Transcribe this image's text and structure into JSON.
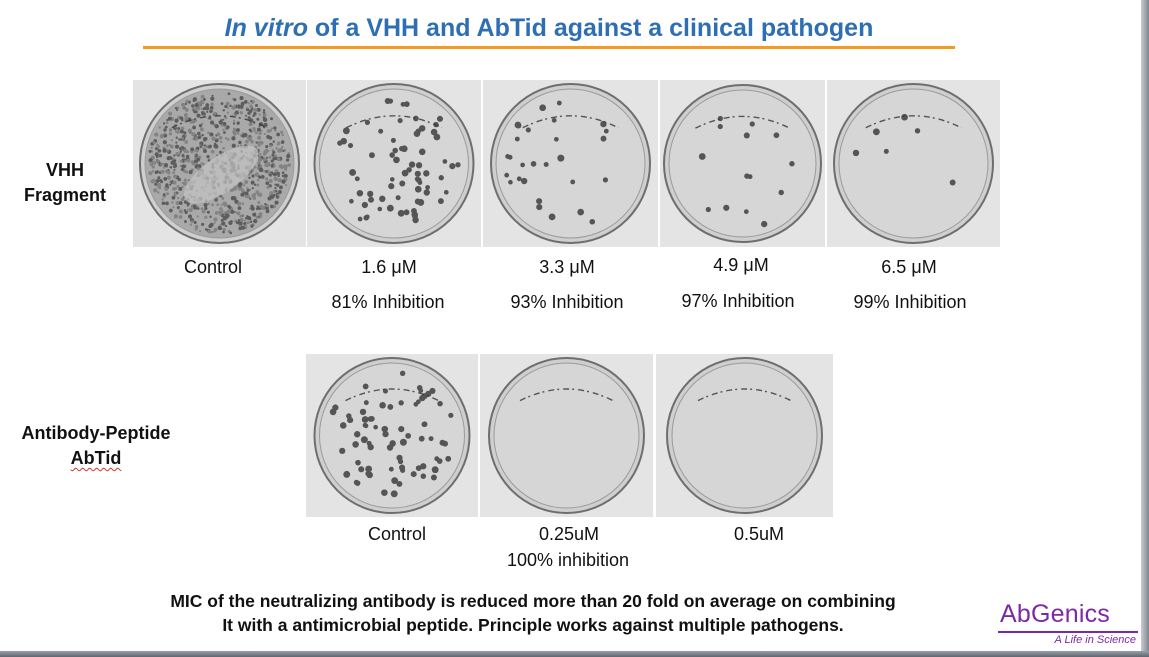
{
  "slide": {
    "title_italic": "In vitro",
    "title_rest": " of a VHH and AbTid against a clinical pathogen",
    "footer_line1": "MIC of the neutralizing antibody is reduced more than 20 fold on average on combining",
    "footer_line2": "It with a antimicrobial peptide.  Principle works against multiple pathogens.",
    "logo_text": "AbGenics",
    "logo_tagline": "A Life in Science",
    "colors": {
      "title": "#2e6fb4",
      "rule": "#f39b1e",
      "logo": "#7b2aa5"
    }
  },
  "vhh_row": {
    "label_line1": "VHH",
    "label_line2": "Fragment",
    "plates": [
      {
        "dose": "Control",
        "inhibition": "",
        "colonies": 0,
        "lawn": true
      },
      {
        "dose": "1.6 μM",
        "inhibition": "81% Inhibition",
        "colonies": 70
      },
      {
        "dose": "3.3 μM",
        "inhibition": "93% Inhibition",
        "colonies": 28
      },
      {
        "dose": "4.9 μM",
        "inhibition": "97% Inhibition",
        "colonies": 14
      },
      {
        "dose": "6.5 μM",
        "inhibition": "99% Inhibition",
        "colonies": 6
      }
    ]
  },
  "abtid_row": {
    "label_line1": "Antibody-Peptide",
    "label_line2": "AbTid",
    "plates": [
      {
        "dose": "Control",
        "inhibition": "",
        "colonies": 75
      },
      {
        "dose": "0.25uM",
        "inhibition": "100% inhibition",
        "colonies": 0
      },
      {
        "dose": "0.5uM",
        "inhibition": "",
        "colonies": 0
      }
    ]
  }
}
